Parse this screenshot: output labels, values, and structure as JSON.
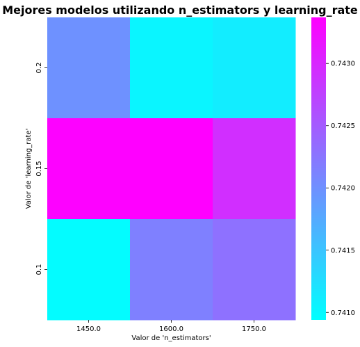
{
  "chart_data": {
    "type": "heatmap",
    "title": "Mejores modelos utilizando n_estimators y learning_rate",
    "xlabel": "Valor de 'n_estimators'",
    "ylabel": "Valor de 'learning_rate'",
    "x_categories": [
      "1450.0",
      "1600.0",
      "1750.0"
    ],
    "y_categories": [
      "0.2",
      "0.15",
      "0.1"
    ],
    "values": [
      [
        0.74199,
        0.74104,
        0.74111
      ],
      [
        0.74335,
        0.74339,
        0.74293
      ],
      [
        0.74097,
        0.74215,
        0.74229
      ]
    ],
    "colormap": "cool",
    "colorbar": {
      "min": 0.74094,
      "max": 0.74337,
      "ticks": [
        "0.7410",
        "0.7415",
        "0.7420",
        "0.7425",
        "0.7430"
      ]
    },
    "colors": {
      "low": "#00ffff",
      "high": "#ff00ff"
    }
  }
}
